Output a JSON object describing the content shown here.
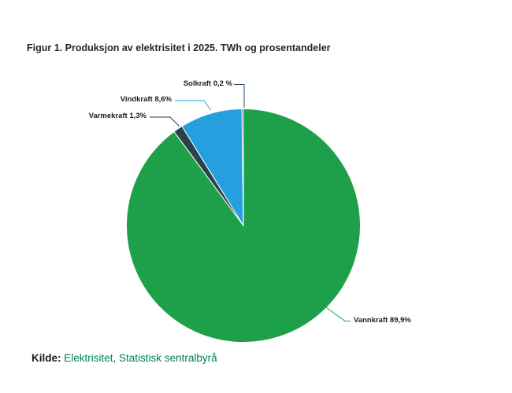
{
  "chart_data": {
    "type": "pie",
    "title": "Figur 1. Produksjon av elektrisitet i 2025. TWh og prosentandeler",
    "unit": "percent",
    "start_angle_deg": 0,
    "direction": "clockwise",
    "legend": "none",
    "slices": [
      {
        "name": "Vannkraft",
        "value_pct": 89.9,
        "label": "Vannkraft 89,9%",
        "color": "#1EA04B"
      },
      {
        "name": "Varmekraft",
        "value_pct": 1.3,
        "label": "Varmekraft 1,3%",
        "color": "#2A434A"
      },
      {
        "name": "Vindkraft",
        "value_pct": 8.6,
        "label": "Vindkraft 8,6%",
        "color": "#259FDE"
      },
      {
        "name": "Solkraft",
        "value_pct": 0.2,
        "label": "Solkraft 0,2 %",
        "color": "#2B4A70"
      }
    ]
  },
  "source": {
    "prefix": "Kilde:",
    "text": "Elektrisitet, Statistisk sentralbyrå",
    "link_color": "#00824D"
  },
  "colors": {
    "background": "#ffffff",
    "title_text": "#262626",
    "label_text": "#1c1c1c",
    "slice_border": "#ffffff"
  }
}
